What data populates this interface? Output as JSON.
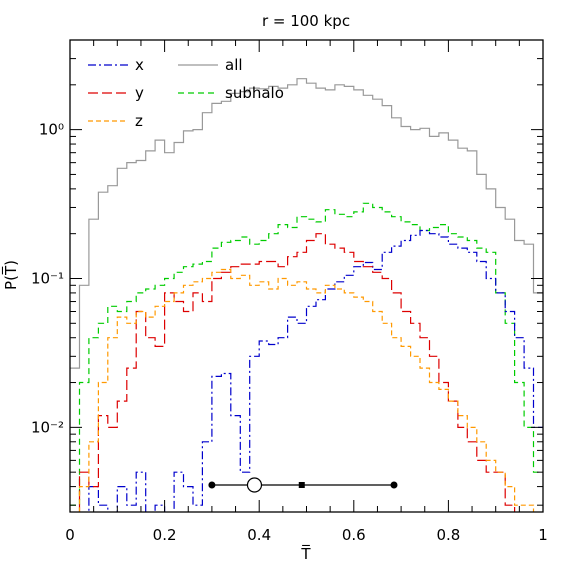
{
  "chart_data": {
    "type": "line",
    "title": "r = 100 kpc",
    "xlabel": "T̅",
    "ylabel": "P(T̅)",
    "xlim": [
      0,
      1
    ],
    "ylim": [
      0.0027,
      4.0
    ],
    "yscale": "log",
    "x_tick_labels": [
      "0",
      "0.2",
      "0.4",
      "0.6",
      "0.8",
      "1"
    ],
    "y_tick_labels": [
      {
        "value": 1,
        "label": "10⁰"
      },
      {
        "value": 0.1,
        "label": "10⁻¹"
      },
      {
        "value": 0.01,
        "label": "10⁻²"
      }
    ],
    "grid": false,
    "legend_position": "top-left",
    "bin_width": 0.02,
    "series": [
      {
        "name": "all",
        "color": "#999999",
        "dash": "",
        "values": [
          0.025,
          0.09,
          0.25,
          0.38,
          0.42,
          0.55,
          0.6,
          0.62,
          0.72,
          0.85,
          0.7,
          0.82,
          0.98,
          1.0,
          1.3,
          1.5,
          1.55,
          1.75,
          1.8,
          1.9,
          1.88,
          1.95,
          1.9,
          2.0,
          2.2,
          2.05,
          1.9,
          1.85,
          2.0,
          1.95,
          1.85,
          1.7,
          1.6,
          1.45,
          1.2,
          1.05,
          1.0,
          1.02,
          0.9,
          0.95,
          0.85,
          0.75,
          0.72,
          0.5,
          0.4,
          0.3,
          0.25,
          0.18,
          0.17,
          0.08
        ]
      },
      {
        "name": "subhalo",
        "color": "#00cc00",
        "dash": "6,4",
        "values": [
          0.003,
          0.02,
          0.04,
          0.05,
          0.065,
          0.06,
          0.07,
          0.08,
          0.085,
          0.09,
          0.1,
          0.11,
          0.12,
          0.125,
          0.13,
          0.16,
          0.175,
          0.18,
          0.19,
          0.17,
          0.18,
          0.2,
          0.23,
          0.22,
          0.26,
          0.25,
          0.24,
          0.29,
          0.27,
          0.26,
          0.28,
          0.32,
          0.3,
          0.28,
          0.26,
          0.24,
          0.23,
          0.21,
          0.22,
          0.23,
          0.2,
          0.19,
          0.18,
          0.16,
          0.15,
          0.08,
          0.05,
          0.02,
          0.01,
          0.005
        ]
      },
      {
        "name": "x",
        "color": "#0000cc",
        "dash": "8,3,2,3",
        "values": [
          0.002,
          0.002,
          0.004,
          0.003,
          0.002,
          0.004,
          0.003,
          0.005,
          0.002,
          0.003,
          0.002,
          0.005,
          0.004,
          0.003,
          0.008,
          0.022,
          0.023,
          0.012,
          0.005,
          0.03,
          0.038,
          0.036,
          0.04,
          0.055,
          0.05,
          0.065,
          0.072,
          0.085,
          0.095,
          0.105,
          0.12,
          0.128,
          0.115,
          0.15,
          0.165,
          0.18,
          0.195,
          0.21,
          0.2,
          0.19,
          0.17,
          0.16,
          0.15,
          0.13,
          0.1,
          0.08,
          0.06,
          0.04,
          0.025,
          0.01
        ]
      },
      {
        "name": "y",
        "color": "#dd0000",
        "dash": "10,4",
        "values": [
          0.002,
          0.005,
          0.004,
          0.012,
          0.01,
          0.015,
          0.025,
          0.06,
          0.04,
          0.035,
          0.08,
          0.07,
          0.06,
          0.08,
          0.07,
          0.1,
          0.11,
          0.12,
          0.125,
          0.125,
          0.13,
          0.13,
          0.12,
          0.14,
          0.15,
          0.18,
          0.2,
          0.17,
          0.16,
          0.15,
          0.13,
          0.12,
          0.11,
          0.1,
          0.08,
          0.06,
          0.05,
          0.04,
          0.03,
          0.02,
          0.015,
          0.01,
          0.008,
          0.006,
          0.005,
          0.005,
          0.003,
          0.002,
          0.002,
          0.002
        ]
      },
      {
        "name": "z",
        "color": "#ff9900",
        "dash": "5,3",
        "values": [
          0.002,
          0.004,
          0.008,
          0.02,
          0.04,
          0.055,
          0.05,
          0.06,
          0.055,
          0.065,
          0.07,
          0.08,
          0.09,
          0.095,
          0.1,
          0.11,
          0.115,
          0.1,
          0.105,
          0.09,
          0.095,
          0.085,
          0.1,
          0.09,
          0.095,
          0.085,
          0.08,
          0.09,
          0.085,
          0.08,
          0.075,
          0.07,
          0.06,
          0.05,
          0.04,
          0.035,
          0.03,
          0.025,
          0.02,
          0.018,
          0.015,
          0.012,
          0.01,
          0.008,
          0.006,
          0.005,
          0.004,
          0.003,
          0.003,
          0.002
        ]
      }
    ],
    "range_marker": {
      "y": 0.0041,
      "x_min": 0.3,
      "x_max": 0.685,
      "median": 0.49,
      "open_circle": 0.39
    }
  }
}
